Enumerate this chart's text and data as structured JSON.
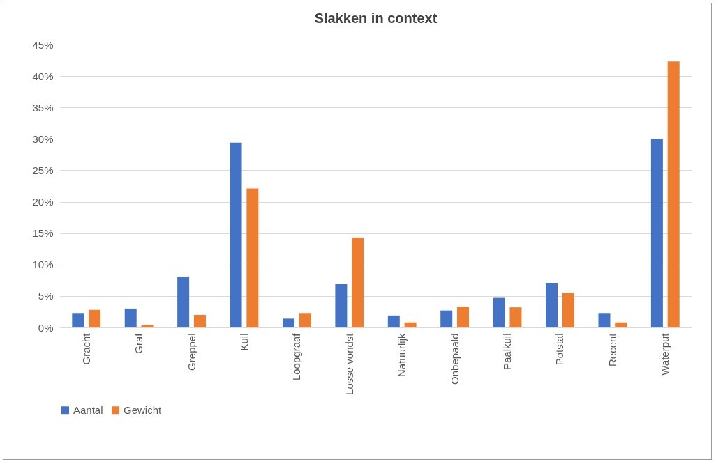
{
  "chart_data": {
    "type": "bar",
    "title": "Slakken in context",
    "categories": [
      "Gracht",
      "Graf",
      "Greppel",
      "Kuil",
      "Loopgraaf",
      "Losse vondst",
      "Natuurlijk",
      "Onbepaald",
      "Paalkuil",
      "Potstal",
      "Recent",
      "Waterput"
    ],
    "series": [
      {
        "name": "Aantal",
        "color": "#4472c4",
        "values": [
          2.3,
          3.0,
          8.1,
          29.4,
          1.4,
          6.9,
          1.9,
          2.7,
          4.7,
          7.1,
          2.3,
          30.0
        ]
      },
      {
        "name": "Gewicht",
        "color": "#ed7d31",
        "values": [
          2.8,
          0.4,
          2.0,
          22.1,
          2.3,
          14.3,
          0.8,
          3.3,
          3.2,
          5.5,
          0.8,
          42.3
        ]
      }
    ],
    "ylim": [
      0,
      45
    ],
    "yticks": [
      {
        "value": 0,
        "label": "0%"
      },
      {
        "value": 5,
        "label": "5%"
      },
      {
        "value": 10,
        "label": "10%"
      },
      {
        "value": 15,
        "label": "15%"
      },
      {
        "value": 20,
        "label": "20%"
      },
      {
        "value": 25,
        "label": "25%"
      },
      {
        "value": 30,
        "label": "30%"
      },
      {
        "value": 35,
        "label": "35%"
      },
      {
        "value": 40,
        "label": "40%"
      },
      {
        "value": 45,
        "label": "45%"
      }
    ],
    "grid": "y",
    "legend": "bottom"
  }
}
